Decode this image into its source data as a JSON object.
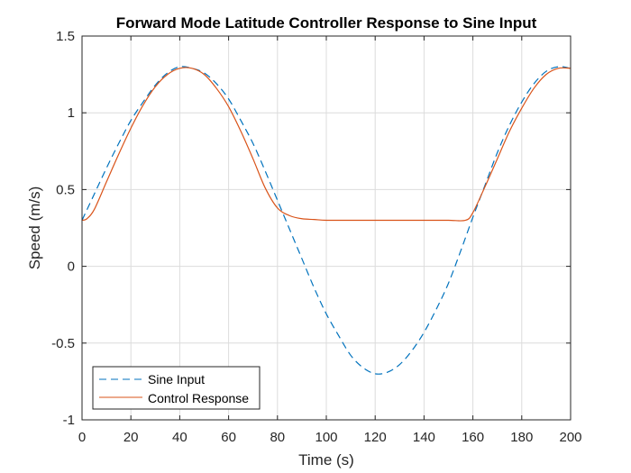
{
  "chart_data": {
    "type": "line",
    "title": "Forward Mode Latitude Controller Response to Sine Input",
    "xlabel": "Time (s)",
    "ylabel": "Speed (m/s)",
    "xlim": [
      0,
      200
    ],
    "ylim": [
      -1,
      1.5
    ],
    "xticks": [
      0,
      20,
      40,
      60,
      80,
      100,
      120,
      140,
      160,
      180,
      200
    ],
    "yticks": [
      -1,
      -0.5,
      0,
      0.5,
      1,
      1.5
    ],
    "xtick_labels": [
      "0",
      "20",
      "40",
      "60",
      "80",
      "100",
      "120",
      "140",
      "160",
      "180",
      "200"
    ],
    "ytick_labels": [
      "-1",
      "-0.5",
      "0",
      "0.5",
      "1",
      "1.5"
    ],
    "grid": true,
    "legend_position": "bottom-left",
    "colors": {
      "sine": "#0072bd",
      "response": "#d95319",
      "grid": "#dcdcdc",
      "axis": "#262626"
    },
    "series": [
      {
        "name": "Sine Input",
        "style": "dashed",
        "x": [
          0,
          5,
          10,
          15,
          20,
          25,
          30,
          35,
          40,
          45,
          50,
          55,
          60,
          65,
          70,
          75,
          80,
          85,
          90,
          95,
          100,
          105,
          110,
          115,
          120,
          125,
          130,
          135,
          140,
          145,
          150,
          155,
          160,
          165,
          170,
          175,
          180,
          185,
          190,
          195,
          200
        ],
        "y": [
          0.3,
          0.47,
          0.64,
          0.8,
          0.95,
          1.07,
          1.18,
          1.26,
          1.3,
          1.29,
          1.26,
          1.19,
          1.09,
          0.95,
          0.8,
          0.62,
          0.43,
          0.24,
          0.05,
          -0.14,
          -0.31,
          -0.45,
          -0.58,
          -0.66,
          -0.7,
          -0.69,
          -0.64,
          -0.55,
          -0.43,
          -0.28,
          -0.11,
          0.1,
          0.32,
          0.53,
          0.74,
          0.92,
          1.07,
          1.19,
          1.27,
          1.3,
          1.29
        ]
      },
      {
        "name": "Control Response",
        "style": "solid",
        "x": [
          0,
          2,
          5,
          10,
          15,
          20,
          25,
          30,
          35,
          40,
          45,
          50,
          55,
          60,
          65,
          70,
          75,
          80,
          85,
          90,
          95,
          100,
          110,
          120,
          130,
          140,
          150,
          157,
          160,
          165,
          170,
          175,
          180,
          185,
          190,
          195,
          200
        ],
        "y": [
          0.3,
          0.31,
          0.37,
          0.55,
          0.73,
          0.9,
          1.05,
          1.17,
          1.25,
          1.29,
          1.29,
          1.25,
          1.16,
          1.04,
          0.88,
          0.7,
          0.51,
          0.38,
          0.33,
          0.31,
          0.305,
          0.3,
          0.3,
          0.3,
          0.3,
          0.3,
          0.3,
          0.3,
          0.35,
          0.52,
          0.7,
          0.88,
          1.03,
          1.16,
          1.25,
          1.29,
          1.29
        ]
      }
    ]
  }
}
